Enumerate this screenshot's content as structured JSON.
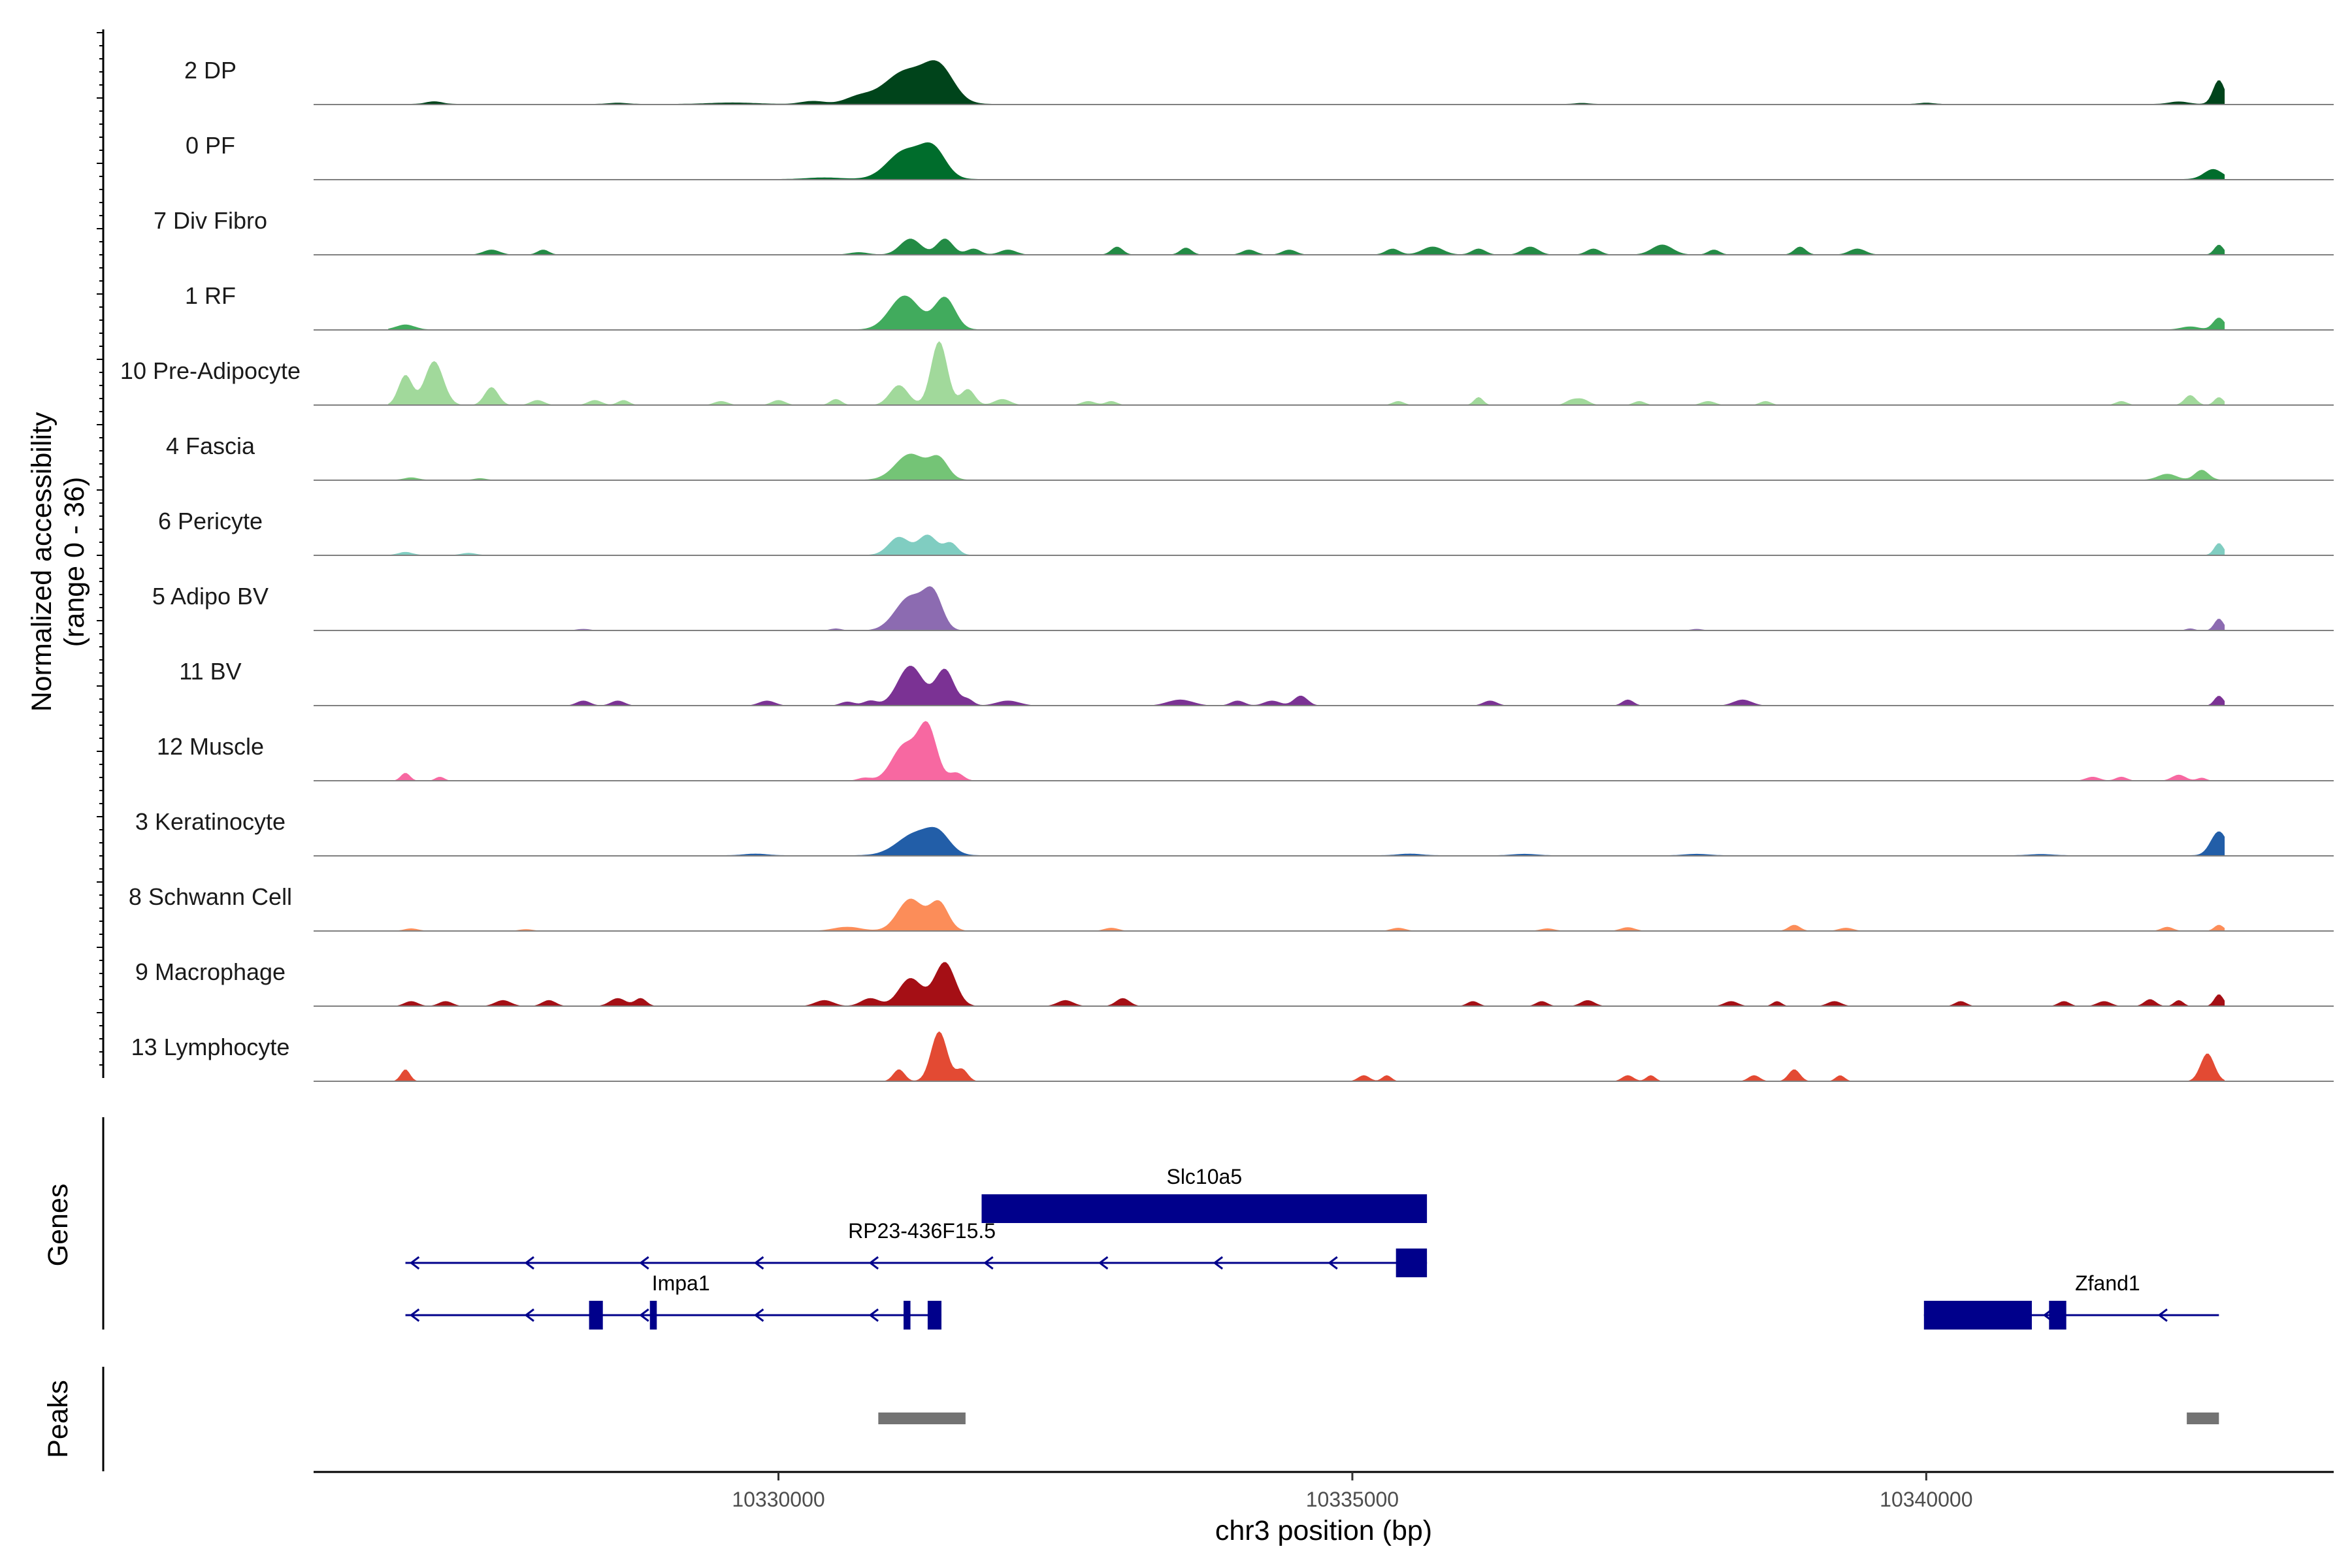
{
  "chart_data": {
    "type": "area",
    "title": "",
    "coverage_ylabel": "Normalized accessibility",
    "coverage_ylabel_range": "(range 0 - 36)",
    "y_range": [
      0,
      36
    ],
    "xlabel": "chr3 position (bp)",
    "xlim": [
      10325950,
      10343550
    ],
    "region": [
      10326600,
      10342600
    ],
    "x_ticks": [
      10330000,
      10335000,
      10340000
    ],
    "x_tick_labels": [
      "10330000",
      "10335000",
      "10340000"
    ],
    "tracks": [
      {
        "name": "2 DP",
        "color": "#00441b",
        "bg": 0.3,
        "peaks": [
          [
            10327000,
            1.3,
            70
          ],
          [
            10328600,
            0.6,
            80
          ],
          [
            10329600,
            0.7,
            200
          ],
          [
            10330300,
            1.5,
            100
          ],
          [
            10330700,
            3.5,
            120
          ],
          [
            10331100,
            16,
            180
          ],
          [
            10331400,
            17,
            130
          ],
          [
            10337000,
            0.5,
            60
          ],
          [
            10340000,
            0.6,
            60
          ],
          [
            10342200,
            1.2,
            80
          ],
          [
            10342550,
            12,
            50
          ]
        ]
      },
      {
        "name": "0 PF",
        "color": "#006d2c",
        "bg": 0.3,
        "peaks": [
          [
            10330400,
            0.8,
            150
          ],
          [
            10331100,
            14,
            150
          ],
          [
            10331350,
            14,
            110
          ],
          [
            10342500,
            5,
            80
          ]
        ]
      },
      {
        "name": "7 Div Fibro",
        "color": "#238b45",
        "bg": 0.1,
        "peaks": [
          [
            10327500,
            2.5,
            70
          ],
          [
            10327950,
            2.5,
            50
          ],
          [
            10330700,
            1.2,
            80
          ],
          [
            10331150,
            8,
            90
          ],
          [
            10331450,
            8,
            70
          ],
          [
            10331700,
            3,
            60
          ],
          [
            10332000,
            2.5,
            70
          ],
          [
            10332950,
            4,
            50
          ],
          [
            10333550,
            3.5,
            50
          ],
          [
            10334100,
            2.5,
            60
          ],
          [
            10334450,
            2.5,
            60
          ],
          [
            10335350,
            3,
            60
          ],
          [
            10335700,
            4,
            90
          ],
          [
            10336100,
            3,
            60
          ],
          [
            10336550,
            4,
            70
          ],
          [
            10337100,
            3,
            60
          ],
          [
            10337700,
            5,
            90
          ],
          [
            10338150,
            2.5,
            50
          ],
          [
            10338900,
            4,
            50
          ],
          [
            10339400,
            3,
            70
          ],
          [
            10342550,
            5,
            40
          ]
        ]
      },
      {
        "name": "1 RF",
        "color": "#41ab5d",
        "bg": 0.2,
        "peaks": [
          [
            10326750,
            2.5,
            80
          ],
          [
            10331100,
            17,
            130
          ],
          [
            10331450,
            16,
            90
          ],
          [
            10342300,
            1.5,
            80
          ],
          [
            10342550,
            6,
            50
          ]
        ]
      },
      {
        "name": "10 Pre-Adipocyte",
        "color": "#a1d99b",
        "bg": 0,
        "peaks": [
          [
            10326750,
            15,
            60
          ],
          [
            10327000,
            22,
            80
          ],
          [
            10327500,
            9,
            60
          ],
          [
            10327900,
            2.5,
            60
          ],
          [
            10328400,
            2.5,
            60
          ],
          [
            10328650,
            2.5,
            50
          ],
          [
            10329500,
            2,
            60
          ],
          [
            10330000,
            2.5,
            60
          ],
          [
            10330500,
            3,
            50
          ],
          [
            10331050,
            10,
            80
          ],
          [
            10331400,
            32,
            70
          ],
          [
            10331650,
            8,
            60
          ],
          [
            10331950,
            3,
            70
          ],
          [
            10332700,
            2,
            60
          ],
          [
            10332900,
            2,
            50
          ],
          [
            10335400,
            2,
            50
          ],
          [
            10336100,
            4,
            40
          ],
          [
            10336900,
            2,
            50
          ],
          [
            10337000,
            3,
            60
          ],
          [
            10337500,
            2,
            50
          ],
          [
            10338100,
            2,
            60
          ],
          [
            10338600,
            2,
            50
          ],
          [
            10341700,
            2,
            50
          ],
          [
            10342300,
            5,
            50
          ],
          [
            10342550,
            4,
            40
          ]
        ]
      },
      {
        "name": "4 Fascia",
        "color": "#74c476",
        "bg": 0.2,
        "peaks": [
          [
            10326800,
            1.2,
            60
          ],
          [
            10327400,
            0.8,
            50
          ],
          [
            10331150,
            13,
            130
          ],
          [
            10331400,
            10,
            80
          ],
          [
            10342100,
            3,
            80
          ],
          [
            10342400,
            5,
            60
          ]
        ]
      },
      {
        "name": "6 Pericyte",
        "color": "#80cdc1",
        "bg": 0.2,
        "peaks": [
          [
            10326750,
            1.5,
            60
          ],
          [
            10327300,
            1,
            60
          ],
          [
            10331050,
            9,
            90
          ],
          [
            10331300,
            10,
            80
          ],
          [
            10331500,
            6,
            60
          ],
          [
            10342550,
            6,
            40
          ]
        ]
      },
      {
        "name": "5 Adipo BV",
        "color": "#8c6bb1",
        "bg": 0,
        "peaks": [
          [
            10328300,
            0.8,
            60
          ],
          [
            10330500,
            1,
            50
          ],
          [
            10331150,
            17,
            130
          ],
          [
            10331350,
            16,
            80
          ],
          [
            10338000,
            0.8,
            50
          ],
          [
            10342300,
            1,
            40
          ],
          [
            10342550,
            6,
            40
          ]
        ]
      },
      {
        "name": "11 BV",
        "color": "#7b3294",
        "bg": 0,
        "peaks": [
          [
            10328300,
            2.5,
            60
          ],
          [
            10328600,
            2.5,
            60
          ],
          [
            10329900,
            2.5,
            70
          ],
          [
            10330600,
            2,
            60
          ],
          [
            10330800,
            2.5,
            60
          ],
          [
            10331150,
            20,
            110
          ],
          [
            10331450,
            18,
            80
          ],
          [
            10331650,
            3,
            50
          ],
          [
            10332000,
            2.5,
            100
          ],
          [
            10333500,
            3,
            110
          ],
          [
            10334000,
            2.5,
            60
          ],
          [
            10334300,
            2.5,
            70
          ],
          [
            10334550,
            5,
            60
          ],
          [
            10336200,
            2.5,
            60
          ],
          [
            10337400,
            3,
            50
          ],
          [
            10338400,
            3,
            80
          ],
          [
            10342550,
            5,
            40
          ]
        ]
      },
      {
        "name": "12 Muscle",
        "color": "#f768a1",
        "bg": 0,
        "peaks": [
          [
            10326750,
            4,
            40
          ],
          [
            10327050,
            2,
            40
          ],
          [
            10330750,
            1.5,
            60
          ],
          [
            10331100,
            18,
            110
          ],
          [
            10331300,
            26,
            80
          ],
          [
            10331550,
            4,
            60
          ],
          [
            10341450,
            2,
            60
          ],
          [
            10341700,
            2,
            50
          ],
          [
            10342200,
            3,
            60
          ],
          [
            10342400,
            1.5,
            40
          ]
        ]
      },
      {
        "name": "3 Keratinocyte",
        "color": "#225ea8",
        "bg": 0.3,
        "peaks": [
          [
            10329800,
            0.8,
            100
          ],
          [
            10331200,
            11,
            160
          ],
          [
            10331400,
            8,
            100
          ],
          [
            10335500,
            0.8,
            100
          ],
          [
            10336500,
            0.7,
            100
          ],
          [
            10338000,
            0.7,
            100
          ],
          [
            10341000,
            0.6,
            100
          ],
          [
            10342550,
            12,
            70
          ]
        ]
      },
      {
        "name": "8 Schwann Cell",
        "color": "#fc8d59",
        "bg": 0.1,
        "peaks": [
          [
            10326800,
            1.2,
            60
          ],
          [
            10327800,
            0.8,
            60
          ],
          [
            10330600,
            2,
            120
          ],
          [
            10331150,
            16,
            110
          ],
          [
            10331400,
            14,
            80
          ],
          [
            10332900,
            1.5,
            60
          ],
          [
            10335400,
            1.5,
            60
          ],
          [
            10336700,
            1.2,
            60
          ],
          [
            10337400,
            1.8,
            60
          ],
          [
            10338850,
            3,
            50
          ],
          [
            10339300,
            1.5,
            60
          ],
          [
            10342100,
            2,
            50
          ],
          [
            10342550,
            3,
            40
          ]
        ]
      },
      {
        "name": "9 Macrophage",
        "color": "#a50f15",
        "bg": 0,
        "peaks": [
          [
            10326800,
            2.5,
            60
          ],
          [
            10327100,
            2.5,
            60
          ],
          [
            10327600,
            3,
            70
          ],
          [
            10328000,
            3,
            60
          ],
          [
            10328600,
            4,
            70
          ],
          [
            10328800,
            4,
            50
          ],
          [
            10330400,
            3,
            80
          ],
          [
            10330800,
            4,
            80
          ],
          [
            10331150,
            14,
            100
          ],
          [
            10331450,
            22,
            90
          ],
          [
            10332500,
            3,
            70
          ],
          [
            10333000,
            4,
            60
          ],
          [
            10336050,
            2.5,
            50
          ],
          [
            10336650,
            2.5,
            50
          ],
          [
            10337050,
            3,
            60
          ],
          [
            10338300,
            2.5,
            60
          ],
          [
            10338700,
            2.5,
            40
          ],
          [
            10339200,
            2.5,
            60
          ],
          [
            10340300,
            2.5,
            50
          ],
          [
            10341200,
            2.5,
            50
          ],
          [
            10341550,
            2.5,
            60
          ],
          [
            10341950,
            3.5,
            50
          ],
          [
            10342200,
            3,
            40
          ],
          [
            10342550,
            6,
            40
          ]
        ]
      },
      {
        "name": "13 Lymphocyte",
        "color": "#e34a33",
        "bg": 0,
        "peaks": [
          [
            10326750,
            6,
            40
          ],
          [
            10331050,
            6,
            50
          ],
          [
            10331400,
            25,
            70
          ],
          [
            10331600,
            6,
            50
          ],
          [
            10335100,
            3,
            50
          ],
          [
            10335300,
            3,
            40
          ],
          [
            10337400,
            3,
            50
          ],
          [
            10337600,
            3,
            40
          ],
          [
            10338500,
            3,
            50
          ],
          [
            10338850,
            6,
            50
          ],
          [
            10339250,
            3,
            40
          ],
          [
            10342450,
            14,
            60
          ]
        ]
      }
    ],
    "genes_label": "Genes",
    "gene_color": "#00008b",
    "genes": [
      {
        "name": "Slc10a5",
        "start": 10331770,
        "end": 10335650,
        "row": 0,
        "strand": "+",
        "exons": [
          [
            10331770,
            10335650
          ]
        ]
      },
      {
        "name": "RP23-436F15.5",
        "start": 10326750,
        "end": 10335650,
        "row": 1,
        "strand": "-",
        "exons": [
          [
            10335380,
            10335650
          ]
        ]
      },
      {
        "name": "Impa1",
        "start": 10326750,
        "end": 10331420,
        "row": 2,
        "strand": "-",
        "exons": [
          [
            10328350,
            10328470
          ],
          [
            10328880,
            10328940
          ],
          [
            10331090,
            10331150
          ],
          [
            10331300,
            10331420
          ]
        ]
      },
      {
        "name": "Zfand1",
        "start": 10339980,
        "end": 10342550,
        "row": 2,
        "strand": "-",
        "exons": [
          [
            10339980,
            10340920
          ],
          [
            10341070,
            10341220
          ]
        ]
      }
    ],
    "peaks_label": "Peaks",
    "peak_color": "#737373",
    "peak_regions": [
      [
        10330870,
        10331630
      ],
      [
        10342270,
        10342550
      ]
    ]
  }
}
